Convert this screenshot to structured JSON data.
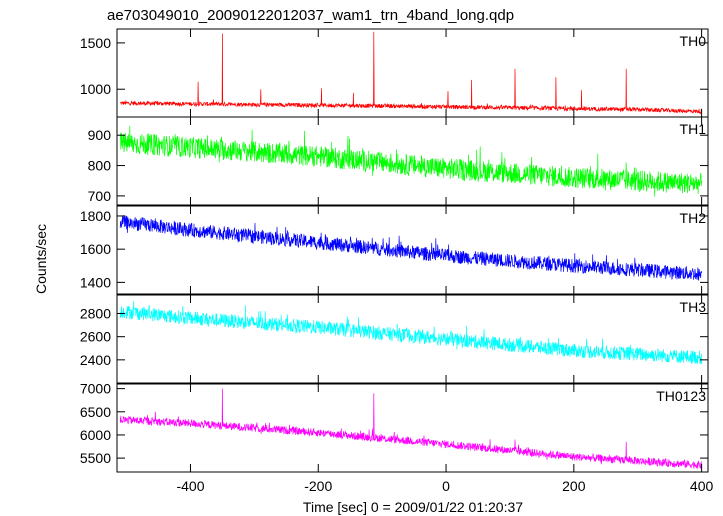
{
  "chart_data": {
    "type": "line",
    "title": "ae703049010_20090122012037_wam1_trn_4band_long.qdp",
    "xlabel": "Time [sec] 0 = 2009/01/22 01:20:37",
    "ylabel": "Counts/sec",
    "xlim": [
      -515,
      410
    ],
    "xticks": [
      -400,
      -200,
      0,
      200,
      400
    ],
    "grid": false,
    "legend": "none",
    "panels": [
      {
        "name": "TH0",
        "color": "#ff0000",
        "ylim": [
          700,
          1650
        ],
        "yticks": [
          1000,
          1500
        ],
        "trend": {
          "x": [
            -510,
            -300,
            -100,
            100,
            300,
            400
          ],
          "y": [
            850,
            835,
            820,
            800,
            780,
            760
          ]
        },
        "noise_amplitude": 22,
        "spikes": [
          {
            "x": -350,
            "y": 1600
          },
          {
            "x": -388,
            "y": 1080
          },
          {
            "x": -290,
            "y": 1000
          },
          {
            "x": -195,
            "y": 1010
          },
          {
            "x": -145,
            "y": 960
          },
          {
            "x": -113,
            "y": 1620
          },
          {
            "x": 3,
            "y": 980
          },
          {
            "x": 40,
            "y": 1100
          },
          {
            "x": 108,
            "y": 1220
          },
          {
            "x": 172,
            "y": 1130
          },
          {
            "x": 212,
            "y": 990
          },
          {
            "x": 282,
            "y": 1220
          }
        ]
      },
      {
        "name": "TH1",
        "color": "#00ff00",
        "ylim": [
          670,
          960
        ],
        "yticks": [
          700,
          800,
          900
        ],
        "trend": {
          "x": [
            -510,
            -400,
            -200,
            0,
            200,
            400
          ],
          "y": [
            875,
            860,
            830,
            790,
            760,
            740
          ]
        },
        "noise_amplitude": 35,
        "spikes": []
      },
      {
        "name": "TH2",
        "color": "#0000ff",
        "ylim": [
          1330,
          1860
        ],
        "yticks": [
          1400,
          1600,
          1800
        ],
        "trend": {
          "x": [
            -510,
            -400,
            -200,
            0,
            200,
            400
          ],
          "y": [
            1765,
            1715,
            1640,
            1560,
            1500,
            1450
          ]
        },
        "noise_amplitude": 42,
        "spikes": []
      },
      {
        "name": "TH3",
        "color": "#00ffff",
        "ylim": [
          2200,
          2960
        ],
        "yticks": [
          2400,
          2600,
          2800
        ],
        "trend": {
          "x": [
            -510,
            -400,
            -200,
            0,
            200,
            400
          ],
          "y": [
            2820,
            2760,
            2680,
            2580,
            2480,
            2420
          ]
        },
        "noise_amplitude": 60,
        "spikes": []
      },
      {
        "name": "TH0123",
        "color": "#ff00ff",
        "ylim": [
          5200,
          7100
        ],
        "yticks": [
          5500,
          6000,
          6500,
          7000
        ],
        "trend": {
          "x": [
            -510,
            -400,
            -200,
            0,
            200,
            400
          ],
          "y": [
            6330,
            6250,
            6050,
            5800,
            5530,
            5350
          ]
        },
        "noise_amplitude": 85,
        "spikes": [
          {
            "x": -350,
            "y": 7000
          },
          {
            "x": -113,
            "y": 6900
          },
          {
            "x": 108,
            "y": 5900
          },
          {
            "x": 282,
            "y": 5850
          },
          {
            "x": -455,
            "y": 6500
          }
        ]
      }
    ]
  }
}
